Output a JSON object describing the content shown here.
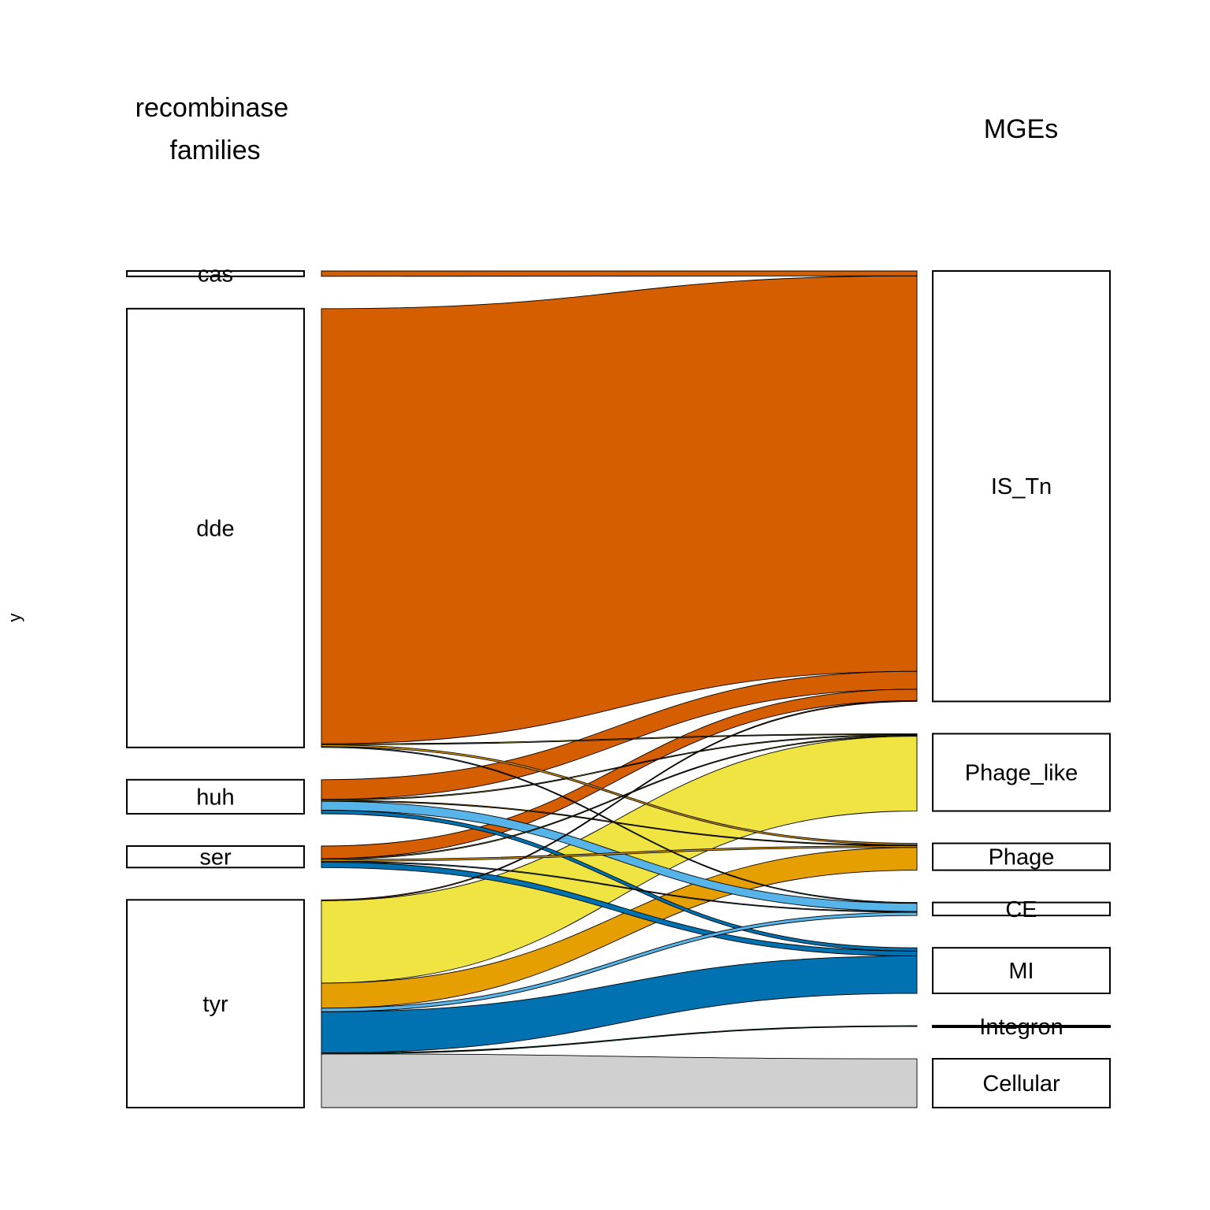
{
  "chart_data": {
    "type": "alluvial",
    "ylabel": "y",
    "axes": [
      {
        "id": "left",
        "title_lines": [
          "recombinase",
          "families"
        ]
      },
      {
        "id": "right",
        "title_lines": [
          "MGEs"
        ]
      }
    ],
    "left_nodes": [
      "cas",
      "dde",
      "huh",
      "ser",
      "tyr"
    ],
    "right_nodes": [
      "IS_Tn",
      "Phage_like",
      "Phage",
      "CE",
      "MI",
      "Integron",
      "Cellular"
    ],
    "colors": {
      "IS_Tn": "#D55E00",
      "Phage_like": "#F0E442",
      "Phage": "#E69F00",
      "CE": "#56B4E9",
      "MI": "#0072B2",
      "Integron": "#009E73",
      "Cellular": "#D0D0D0"
    },
    "flows": [
      {
        "from": "cas",
        "to": "IS_Tn",
        "value": 3
      },
      {
        "from": "dde",
        "to": "IS_Tn",
        "value": 243
      },
      {
        "from": "dde",
        "to": "Phage_like",
        "value": 0.5
      },
      {
        "from": "dde",
        "to": "Phage",
        "value": 1
      },
      {
        "from": "dde",
        "to": "CE",
        "value": 0.5
      },
      {
        "from": "huh",
        "to": "IS_Tn",
        "value": 11
      },
      {
        "from": "huh",
        "to": "Phage_like",
        "value": 0.5
      },
      {
        "from": "huh",
        "to": "Phage",
        "value": 0.5
      },
      {
        "from": "huh",
        "to": "CE",
        "value": 5
      },
      {
        "from": "huh",
        "to": "MI",
        "value": 2
      },
      {
        "from": "ser",
        "to": "IS_Tn",
        "value": 7
      },
      {
        "from": "ser",
        "to": "Phage_like",
        "value": 0.5
      },
      {
        "from": "ser",
        "to": "Phage",
        "value": 1
      },
      {
        "from": "ser",
        "to": "CE",
        "value": 0.5
      },
      {
        "from": "ser",
        "to": "MI",
        "value": 3
      },
      {
        "from": "tyr",
        "to": "IS_Tn",
        "value": 0.5
      },
      {
        "from": "tyr",
        "to": "Phage_like",
        "value": 46
      },
      {
        "from": "tyr",
        "to": "Phage",
        "value": 14
      },
      {
        "from": "tyr",
        "to": "CE",
        "value": 2
      },
      {
        "from": "tyr",
        "to": "MI",
        "value": 23
      },
      {
        "from": "tyr",
        "to": "Integron",
        "value": 0.5
      },
      {
        "from": "tyr",
        "to": "Cellular",
        "value": 30
      }
    ]
  }
}
